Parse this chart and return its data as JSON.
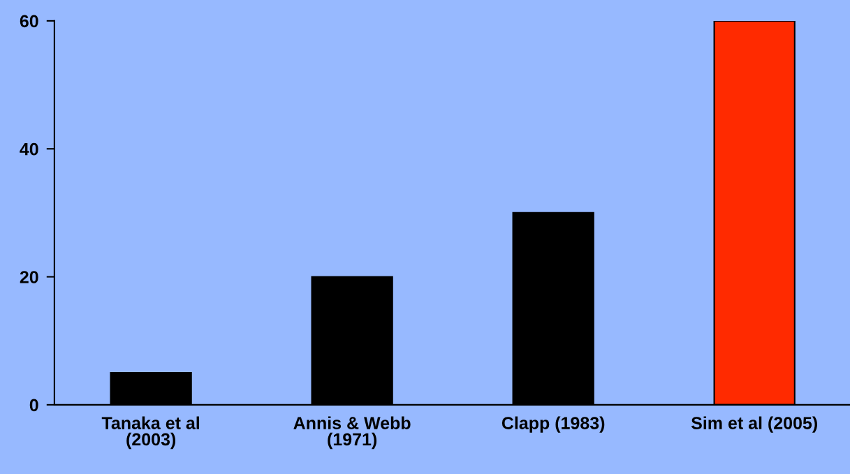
{
  "chart_data": {
    "type": "bar",
    "categories": [
      "Tanaka et al\n(2003)",
      "Annis & Webb\n(1971)",
      "Clapp (1983)",
      "Sim et al (2005)"
    ],
    "values": [
      5,
      20,
      30,
      60
    ],
    "colors": [
      "#000000",
      "#000000",
      "#000000",
      "#ff2a00"
    ],
    "ylim": [
      0,
      60
    ],
    "yticks": [
      0,
      20,
      40,
      60
    ],
    "grid": false,
    "legend": false
  }
}
